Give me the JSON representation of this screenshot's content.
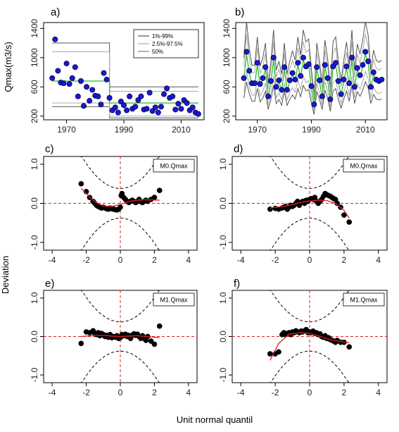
{
  "labels": {
    "ylabel_top": "Qmax(m3/s)",
    "ylabel_bottom": "Deviation",
    "xlabel_bottom": "Unit normal quantil"
  },
  "colors": {
    "points_top": "#1a1acc",
    "median": "#22bb22",
    "band": "#777777",
    "ref": "#e02020",
    "worm": "#e02020"
  },
  "chart_data": [
    {
      "panel": "a)",
      "type": "scatter",
      "xlim": [
        1962,
        2018
      ],
      "ylim": [
        150,
        1480
      ],
      "xticks": [
        1970,
        1990,
        2010
      ],
      "yticks": [
        200,
        600,
        1000,
        1400
      ],
      "legend": {
        "placement": "top-right",
        "entries": [
          "1%-99%",
          "2.5%-97.5%",
          "50%"
        ]
      },
      "points": [
        [
          1965,
          720
        ],
        [
          1966,
          1250
        ],
        [
          1967,
          820
        ],
        [
          1968,
          660
        ],
        [
          1969,
          650
        ],
        [
          1970,
          920
        ],
        [
          1971,
          640
        ],
        [
          1972,
          720
        ],
        [
          1973,
          870
        ],
        [
          1974,
          470
        ],
        [
          1975,
          680
        ],
        [
          1976,
          340
        ],
        [
          1977,
          600
        ],
        [
          1978,
          410
        ],
        [
          1979,
          560
        ],
        [
          1980,
          480
        ],
        [
          1981,
          470
        ],
        [
          1982,
          360
        ],
        [
          1983,
          790
        ],
        [
          1984,
          700
        ],
        [
          1985,
          450
        ],
        [
          1986,
          280
        ],
        [
          1987,
          320
        ],
        [
          1988,
          250
        ],
        [
          1989,
          400
        ],
        [
          1990,
          350
        ],
        [
          1991,
          280
        ],
        [
          1992,
          470
        ],
        [
          1993,
          300
        ],
        [
          1994,
          330
        ],
        [
          1995,
          420
        ],
        [
          1996,
          470
        ],
        [
          1997,
          290
        ],
        [
          1998,
          300
        ],
        [
          1999,
          520
        ],
        [
          2000,
          270
        ],
        [
          2001,
          320
        ],
        [
          2002,
          250
        ],
        [
          2003,
          330
        ],
        [
          2004,
          500
        ],
        [
          2005,
          580
        ],
        [
          2006,
          450
        ],
        [
          2007,
          470
        ],
        [
          2008,
          290
        ],
        [
          2009,
          370
        ],
        [
          2010,
          300
        ],
        [
          2011,
          420
        ],
        [
          2012,
          380
        ],
        [
          2013,
          280
        ],
        [
          2014,
          320
        ],
        [
          2015,
          250
        ],
        [
          2016,
          230
        ]
      ],
      "median_line": [
        [
          1965,
          680
        ],
        [
          1985,
          680
        ],
        [
          1985,
          380
        ],
        [
          2016,
          380
        ]
      ],
      "bands": [
        {
          "name": "1%-99%",
          "lower": [
            [
              1965,
              330
            ],
            [
              1985,
              330
            ],
            [
              1985,
              175
            ],
            [
              2016,
              175
            ]
          ],
          "upper": [
            [
              1965,
              1200
            ],
            [
              1985,
              1200
            ],
            [
              1985,
              600
            ],
            [
              2016,
              600
            ]
          ]
        },
        {
          "name": "2.5%-97.5%",
          "lower": [
            [
              1965,
              380
            ],
            [
              1985,
              380
            ],
            [
              1985,
              200
            ],
            [
              2016,
              200
            ]
          ],
          "upper": [
            [
              1965,
              1080
            ],
            [
              1985,
              1080
            ],
            [
              1985,
              540
            ],
            [
              2016,
              540
            ]
          ]
        }
      ]
    },
    {
      "panel": "b)",
      "type": "scatter",
      "xlim": [
        1962,
        2018
      ],
      "ylim": [
        150,
        1480
      ],
      "xticks": [
        1970,
        1990,
        2010
      ],
      "yticks": [
        200,
        600,
        1000,
        1400
      ],
      "points": [
        [
          1965,
          720
        ],
        [
          1966,
          1080
        ],
        [
          1967,
          820
        ],
        [
          1968,
          650
        ],
        [
          1969,
          650
        ],
        [
          1970,
          930
        ],
        [
          1971,
          640
        ],
        [
          1972,
          720
        ],
        [
          1973,
          870
        ],
        [
          1974,
          470
        ],
        [
          1975,
          680
        ],
        [
          1976,
          1000
        ],
        [
          1977,
          600
        ],
        [
          1978,
          690
        ],
        [
          1979,
          560
        ],
        [
          1980,
          870
        ],
        [
          1981,
          560
        ],
        [
          1982,
          690
        ],
        [
          1983,
          790
        ],
        [
          1984,
          700
        ],
        [
          1985,
          930
        ],
        [
          1986,
          750
        ],
        [
          1987,
          1000
        ],
        [
          1988,
          880
        ],
        [
          1989,
          910
        ],
        [
          1990,
          610
        ],
        [
          1991,
          360
        ],
        [
          1992,
          870
        ],
        [
          1993,
          690
        ],
        [
          1994,
          470
        ],
        [
          1995,
          900
        ],
        [
          1996,
          720
        ],
        [
          1997,
          430
        ],
        [
          1998,
          880
        ],
        [
          1999,
          930
        ],
        [
          2000,
          680
        ],
        [
          2001,
          500
        ],
        [
          2002,
          700
        ],
        [
          2003,
          880
        ],
        [
          2004,
          650
        ],
        [
          2005,
          1000
        ],
        [
          2006,
          600
        ],
        [
          2007,
          860
        ],
        [
          2008,
          760
        ],
        [
          2009,
          900
        ],
        [
          2010,
          1080
        ],
        [
          2011,
          950
        ],
        [
          2012,
          600
        ],
        [
          2013,
          800
        ],
        [
          2014,
          700
        ],
        [
          2015,
          680
        ],
        [
          2016,
          700
        ]
      ]
    },
    {
      "panel": "c)",
      "type": "scatter",
      "model": "M0.Qmax",
      "xlim": [
        -4.5,
        4.5
      ],
      "ylim": [
        -1.2,
        1.2
      ],
      "xticks": [
        -4,
        -2,
        0,
        2,
        4
      ],
      "yticks": [
        -1.0,
        0.0,
        1.0
      ],
      "points": [
        [
          -2.3,
          0.5
        ],
        [
          -2.0,
          0.3
        ],
        [
          -1.8,
          0.15
        ],
        [
          -1.6,
          0.05
        ],
        [
          -1.5,
          0.0
        ],
        [
          -1.4,
          -0.05
        ],
        [
          -1.3,
          -0.08
        ],
        [
          -1.2,
          -0.1
        ],
        [
          -1.1,
          -0.12
        ],
        [
          -1.0,
          -0.1
        ],
        [
          -0.9,
          -0.12
        ],
        [
          -0.8,
          -0.14
        ],
        [
          -0.7,
          -0.15
        ],
        [
          -0.6,
          -0.12
        ],
        [
          -0.5,
          -0.14
        ],
        [
          -0.4,
          -0.15
        ],
        [
          -0.3,
          -0.16
        ],
        [
          -0.2,
          -0.17
        ],
        [
          -0.1,
          -0.15
        ],
        [
          0.0,
          -0.1
        ],
        [
          0.05,
          0.2
        ],
        [
          0.1,
          0.25
        ],
        [
          0.2,
          0.15
        ],
        [
          0.3,
          0.1
        ],
        [
          0.4,
          0.05
        ],
        [
          0.5,
          0.02
        ],
        [
          0.6,
          0.05
        ],
        [
          0.7,
          0.08
        ],
        [
          0.8,
          0.05
        ],
        [
          0.9,
          0.02
        ],
        [
          1.0,
          0.05
        ],
        [
          1.1,
          0.1
        ],
        [
          1.2,
          0.04
        ],
        [
          1.3,
          0.02
        ],
        [
          1.4,
          0.05
        ],
        [
          1.5,
          0.08
        ],
        [
          1.6,
          0.05
        ],
        [
          1.8,
          0.1
        ],
        [
          2.0,
          0.15
        ],
        [
          2.3,
          0.33
        ]
      ],
      "worm": [
        [
          -2.3,
          0.38
        ],
        [
          -1.5,
          0.04
        ],
        [
          -1.0,
          -0.07
        ],
        [
          -0.5,
          -0.08
        ],
        [
          0.0,
          -0.03
        ],
        [
          0.5,
          0.05
        ],
        [
          1.0,
          0.08
        ],
        [
          1.5,
          0.09
        ],
        [
          2.3,
          0.08
        ]
      ]
    },
    {
      "panel": "d)",
      "type": "scatter",
      "model": "M0.Qmax",
      "xlim": [
        -4.5,
        4.5
      ],
      "ylim": [
        -1.2,
        1.2
      ],
      "xticks": [
        -4,
        -2,
        0,
        2,
        4
      ],
      "yticks": [
        -1.0,
        0.0,
        1.0
      ],
      "points": [
        [
          -2.3,
          -0.15
        ],
        [
          -2.0,
          -0.13
        ],
        [
          -1.8,
          -0.15
        ],
        [
          -1.6,
          -0.12
        ],
        [
          -1.5,
          -0.1
        ],
        [
          -1.4,
          -0.08
        ],
        [
          -1.3,
          -0.15
        ],
        [
          -1.2,
          -0.1
        ],
        [
          -1.1,
          -0.05
        ],
        [
          -1.0,
          -0.08
        ],
        [
          -0.9,
          -0.05
        ],
        [
          -0.8,
          0.0
        ],
        [
          -0.7,
          0.05
        ],
        [
          -0.6,
          -0.05
        ],
        [
          -0.5,
          0.02
        ],
        [
          -0.4,
          0.05
        ],
        [
          -0.3,
          0.0
        ],
        [
          -0.2,
          0.08
        ],
        [
          -0.1,
          0.05
        ],
        [
          0.0,
          0.1
        ],
        [
          0.1,
          0.12
        ],
        [
          0.2,
          0.1
        ],
        [
          0.3,
          0.15
        ],
        [
          0.4,
          0.05
        ],
        [
          0.5,
          0.0
        ],
        [
          0.6,
          0.05
        ],
        [
          0.7,
          0.1
        ],
        [
          0.8,
          0.18
        ],
        [
          0.9,
          0.25
        ],
        [
          1.0,
          0.22
        ],
        [
          1.1,
          0.2
        ],
        [
          1.2,
          0.18
        ],
        [
          1.3,
          0.15
        ],
        [
          1.4,
          0.12
        ],
        [
          1.5,
          0.1
        ],
        [
          1.6,
          0.0
        ],
        [
          1.8,
          -0.1
        ],
        [
          2.0,
          -0.3
        ],
        [
          2.3,
          -0.48
        ]
      ],
      "worm": [
        [
          -2.3,
          -0.12
        ],
        [
          -1.5,
          -0.08
        ],
        [
          -1.0,
          -0.03
        ],
        [
          -0.5,
          0.02
        ],
        [
          0.0,
          0.06
        ],
        [
          0.5,
          0.08
        ],
        [
          1.0,
          0.07
        ],
        [
          1.5,
          0.0
        ],
        [
          2.0,
          -0.18
        ],
        [
          2.3,
          -0.38
        ]
      ]
    },
    {
      "panel": "e)",
      "type": "scatter",
      "model": "M1.Qmax",
      "xlim": [
        -4.5,
        4.5
      ],
      "ylim": [
        -1.2,
        1.2
      ],
      "xticks": [
        -4,
        -2,
        0,
        2,
        4
      ],
      "yticks": [
        -1.0,
        0.0,
        1.0
      ],
      "points": [
        [
          -2.3,
          -0.18
        ],
        [
          -2.0,
          0.12
        ],
        [
          -1.8,
          0.1
        ],
        [
          -1.6,
          0.15
        ],
        [
          -1.5,
          0.08
        ],
        [
          -1.4,
          0.05
        ],
        [
          -1.3,
          0.1
        ],
        [
          -1.2,
          0.02
        ],
        [
          -1.1,
          0.08
        ],
        [
          -1.0,
          0.05
        ],
        [
          -0.9,
          0.0
        ],
        [
          -0.8,
          0.03
        ],
        [
          -0.7,
          -0.02
        ],
        [
          -0.6,
          0.05
        ],
        [
          -0.5,
          -0.03
        ],
        [
          -0.4,
          0.0
        ],
        [
          -0.3,
          -0.02
        ],
        [
          -0.2,
          0.02
        ],
        [
          -0.1,
          -0.05
        ],
        [
          0.0,
          -0.03
        ],
        [
          0.1,
          0.05
        ],
        [
          0.2,
          0.02
        ],
        [
          0.3,
          0.06
        ],
        [
          0.4,
          0.0
        ],
        [
          0.5,
          0.03
        ],
        [
          0.6,
          -0.05
        ],
        [
          0.7,
          0.03
        ],
        [
          0.8,
          0.07
        ],
        [
          0.9,
          0.03
        ],
        [
          1.0,
          0.06
        ],
        [
          1.1,
          0.0
        ],
        [
          1.2,
          -0.05
        ],
        [
          1.3,
          0.02
        ],
        [
          1.4,
          -0.05
        ],
        [
          1.5,
          -0.1
        ],
        [
          1.6,
          0.0
        ],
        [
          1.8,
          -0.12
        ],
        [
          2.0,
          -0.2
        ],
        [
          2.3,
          0.27
        ]
      ],
      "worm": [
        [
          -2.3,
          0.0
        ],
        [
          -1.5,
          0.03
        ],
        [
          -1.0,
          0.03
        ],
        [
          -0.5,
          0.01
        ],
        [
          0.0,
          0.0
        ],
        [
          0.5,
          0.01
        ],
        [
          1.0,
          0.02
        ],
        [
          1.5,
          0.0
        ],
        [
          2.3,
          -0.03
        ]
      ]
    },
    {
      "panel": "f)",
      "type": "scatter",
      "model": "M1.Qmax",
      "xlim": [
        -4.5,
        4.5
      ],
      "ylim": [
        -1.2,
        1.2
      ],
      "xticks": [
        -4,
        -2,
        0,
        2,
        4
      ],
      "yticks": [
        -1.0,
        0.0,
        1.0
      ],
      "points": [
        [
          -2.3,
          -0.45
        ],
        [
          -2.0,
          -0.45
        ],
        [
          -1.8,
          -0.4
        ],
        [
          -1.6,
          0.05
        ],
        [
          -1.5,
          0.1
        ],
        [
          -1.4,
          0.05
        ],
        [
          -1.3,
          0.08
        ],
        [
          -1.2,
          0.1
        ],
        [
          -1.1,
          0.05
        ],
        [
          -1.0,
          0.12
        ],
        [
          -0.9,
          0.1
        ],
        [
          -0.8,
          0.15
        ],
        [
          -0.7,
          0.12
        ],
        [
          -0.6,
          0.1
        ],
        [
          -0.5,
          0.14
        ],
        [
          -0.4,
          0.12
        ],
        [
          -0.3,
          0.15
        ],
        [
          -0.2,
          0.18
        ],
        [
          -0.1,
          0.1
        ],
        [
          0.0,
          0.12
        ],
        [
          0.1,
          0.1
        ],
        [
          0.2,
          0.14
        ],
        [
          0.3,
          0.08
        ],
        [
          0.4,
          0.1
        ],
        [
          0.5,
          0.05
        ],
        [
          0.6,
          0.07
        ],
        [
          0.7,
          0.0
        ],
        [
          0.8,
          -0.02
        ],
        [
          0.9,
          0.02
        ],
        [
          1.0,
          -0.05
        ],
        [
          1.1,
          -0.03
        ],
        [
          1.2,
          -0.08
        ],
        [
          1.3,
          -0.1
        ],
        [
          1.4,
          -0.12
        ],
        [
          1.5,
          -0.15
        ],
        [
          1.6,
          -0.1
        ],
        [
          1.8,
          -0.15
        ],
        [
          2.0,
          -0.15
        ],
        [
          2.3,
          -0.27
        ]
      ],
      "worm": [
        [
          -2.3,
          -0.62
        ],
        [
          -1.8,
          -0.18
        ],
        [
          -1.2,
          0.06
        ],
        [
          -0.5,
          0.1
        ],
        [
          0.0,
          0.08
        ],
        [
          0.5,
          0.02
        ],
        [
          1.0,
          -0.06
        ],
        [
          1.5,
          -0.11
        ],
        [
          2.3,
          -0.16
        ]
      ]
    }
  ]
}
